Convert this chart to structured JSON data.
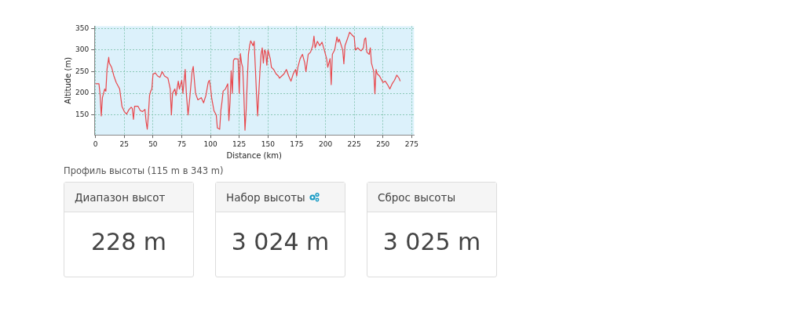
{
  "chart_data": [
    {
      "type": "line",
      "xlabel": "Distance (km)",
      "ylabel": "Altitude (m)",
      "x": [
        0,
        3,
        4,
        5,
        6,
        8,
        9,
        10,
        11.5,
        12,
        14,
        16,
        18,
        20,
        21,
        23,
        25,
        27,
        29,
        31,
        32,
        33,
        34,
        37,
        39,
        41,
        43,
        44,
        45,
        46,
        47,
        48,
        49,
        50,
        52,
        54,
        56,
        58,
        60,
        63,
        65,
        66,
        67,
        69,
        70,
        72,
        73,
        75,
        76,
        78,
        79,
        80.5,
        82,
        84,
        85,
        86,
        87,
        89,
        92,
        94,
        96,
        98,
        99,
        100,
        101,
        103,
        105,
        106,
        108,
        109,
        110,
        111,
        113,
        115,
        116,
        117,
        118,
        119,
        120,
        121,
        124,
        125,
        126,
        127,
        128,
        129,
        130,
        131,
        132,
        133,
        134,
        135,
        137,
        138,
        139,
        140,
        141,
        142,
        143,
        144,
        145,
        146,
        147,
        148,
        149,
        150,
        151,
        152,
        153,
        155,
        157,
        159,
        160,
        162,
        164,
        166,
        168,
        170,
        172,
        174,
        175,
        176,
        178,
        180,
        182,
        183,
        185,
        187,
        189,
        190,
        191,
        193,
        195,
        197,
        199,
        201,
        202,
        204,
        205,
        206,
        208,
        210,
        211,
        212,
        215,
        216,
        217,
        219,
        221,
        223,
        225,
        226,
        228,
        230,
        231,
        233,
        234,
        235,
        236,
        238,
        239,
        240,
        241,
        242,
        243,
        244,
        245,
        247,
        248,
        250,
        252,
        254,
        256,
        258,
        260,
        262,
        264,
        265
      ],
      "series": [
        {
          "color": "#e8474c",
          "values": [
            222,
            222,
            197,
            148,
            190,
            210,
            205,
            255,
            283,
            270,
            260,
            240,
            225,
            215,
            210,
            170,
            158,
            152,
            162,
            168,
            165,
            140,
            170,
            170,
            160,
            158,
            163,
            135,
            117,
            150,
            195,
            205,
            210,
            244,
            247,
            240,
            237,
            250,
            240,
            235,
            210,
            150,
            200,
            210,
            195,
            228,
            210,
            230,
            200,
            255,
            200,
            150,
            190,
            250,
            262,
            230,
            200,
            185,
            190,
            178,
            195,
            225,
            230,
            215,
            190,
            160,
            150,
            120,
            117,
            160,
            180,
            205,
            210,
            222,
            137,
            180,
            252,
            200,
            276,
            280,
            279,
            200,
            292,
            270,
            260,
            200,
            115,
            160,
            230,
            290,
            310,
            321,
            310,
            320,
            260,
            200,
            148,
            200,
            250,
            290,
            305,
            270,
            300,
            295,
            265,
            300,
            290,
            280,
            260,
            255,
            245,
            240,
            235,
            240,
            245,
            255,
            240,
            228,
            245,
            255,
            240,
            260,
            280,
            290,
            270,
            250,
            290,
            295,
            310,
            332,
            305,
            320,
            310,
            318,
            300,
            280,
            260,
            280,
            220,
            290,
            300,
            330,
            318,
            325,
            300,
            268,
            310,
            325,
            341,
            335,
            330,
            300,
            305,
            300,
            298,
            305,
            325,
            328,
            295,
            290,
            305,
            270,
            260,
            250,
            199,
            255,
            245,
            240,
            235,
            225,
            228,
            220,
            210,
            222,
            230,
            242,
            235,
            228
          ]
        }
      ],
      "xlim": [
        -1,
        277
      ],
      "xticks": [
        0,
        25,
        50,
        75,
        100,
        125,
        150,
        175,
        200,
        225,
        250,
        275
      ],
      "ylim": [
        104,
        355
      ],
      "yticks": [
        150,
        200,
        250,
        300,
        350
      ],
      "grid": true,
      "marker": "none",
      "line_style": "solid",
      "annotations": [
        "Профиль высоты (115 m в 343 m)"
      ]
    },
    {
      "type": "other",
      "annotations": [
        "Диапазон высот",
        "228 m",
        "Набор высоты",
        "3 024 m",
        "Сброс высоты",
        "3 025 m"
      ]
    }
  ]
}
